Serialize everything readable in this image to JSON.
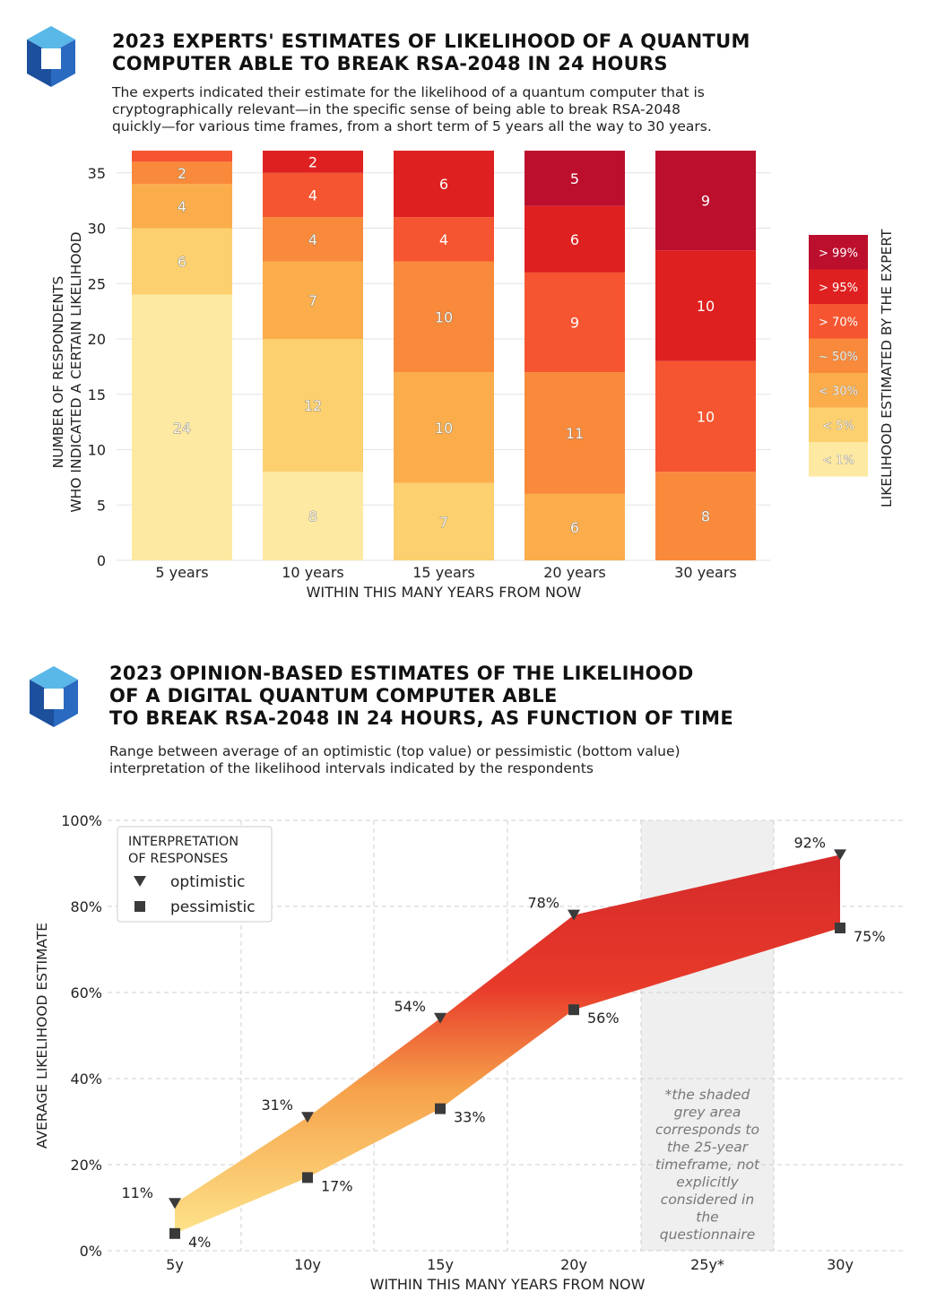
{
  "panel1": {
    "title_line1": "2023 EXPERTS' ESTIMATES OF LIKELIHOOD OF A QUANTUM",
    "title_line2": "COMPUTER ABLE TO BREAK RSA-2048 IN 24 HOURS",
    "subtitle_line1": "The experts indicated their estimate for the likelihood of a quantum computer that is",
    "subtitle_line2": "cryptographically relevant—in the specific sense of being able to break RSA-2048",
    "subtitle_line3": "quickly—for various time frames, from a short term of 5 years all the way to 30 years."
  },
  "panel2": {
    "title_line1": "2023 OPINION-BASED ESTIMATES OF THE LIKELIHOOD",
    "title_line2": "OF A DIGITAL QUANTUM COMPUTER ABLE",
    "title_line3": "TO BREAK RSA-2048 IN 24 HOURS, AS FUNCTION OF TIME",
    "subtitle_line1": "Range between average of an optimistic (top value) or pessimistic (bottom value)",
    "subtitle_line2": "interpretation of the likelihood intervals indicated by the respondents"
  },
  "colors": {
    "logo_light": "#5ab8e8",
    "logo_dark": "#1c4f9c",
    "seg": [
      "#fde9a2",
      "#fdd06f",
      "#fbad4c",
      "#f98a3c",
      "#f55530",
      "#df2020",
      "#bc0f2e"
    ],
    "band_top": "#d42a2a",
    "band_bottom": "#fde38a",
    "shade": "#efefef",
    "marker": "#3a3a3a"
  },
  "chart_data": [
    {
      "type": "bar",
      "stacked": true,
      "categories": [
        "5 years",
        "10 years",
        "15 years",
        "20 years",
        "30 years"
      ],
      "series": [
        {
          "name": "< 1%",
          "values": [
            24,
            8,
            0,
            0,
            0
          ]
        },
        {
          "name": "< 5%",
          "values": [
            6,
            12,
            7,
            0,
            0
          ]
        },
        {
          "name": "< 30%",
          "values": [
            4,
            7,
            10,
            6,
            0
          ]
        },
        {
          "name": "~ 50%",
          "values": [
            2,
            4,
            10,
            11,
            8
          ]
        },
        {
          "name": "> 70%",
          "values": [
            1,
            4,
            4,
            9,
            10
          ]
        },
        {
          "name": "> 95%",
          "values": [
            0,
            2,
            6,
            6,
            10
          ]
        },
        {
          "name": "> 99%",
          "values": [
            0,
            0,
            0,
            5,
            9
          ]
        }
      ],
      "segment_labels": [
        [
          "24",
          "6",
          "4",
          "2",
          "",
          "",
          ""
        ],
        [
          "8",
          "12",
          "7",
          "4",
          "4",
          "2",
          ""
        ],
        [
          "",
          "7",
          "10",
          "10",
          "4",
          "6",
          ""
        ],
        [
          "",
          "",
          "6",
          "11",
          "9",
          "6",
          "5"
        ],
        [
          "",
          "",
          "",
          "8",
          "10",
          "10",
          "9"
        ]
      ],
      "xlabel": "WITHIN THIS MANY YEARS FROM NOW",
      "ylabel_line1": "NUMBER OF RESPONDENTS",
      "ylabel_line2": "WHO INDICATED A CERTAIN LIKELIHOOD",
      "yticks": [
        "0",
        "5",
        "10",
        "15",
        "20",
        "25",
        "30",
        "35"
      ],
      "ylim": [
        0,
        37
      ],
      "legend_title": "LIKELIHOOD ESTIMATED BY THE EXPERT",
      "legend_entries": [
        "> 99%",
        "> 95%",
        "> 70%",
        "~ 50%",
        "< 30%",
        "< 5%",
        "< 1%"
      ],
      "legend_placement": "right",
      "grid": true
    },
    {
      "type": "area",
      "x": [
        "5y",
        "10y",
        "15y",
        "20y",
        "25y*",
        "30y"
      ],
      "series": [
        {
          "name": "optimistic",
          "x": [
            "5y",
            "10y",
            "15y",
            "20y",
            "30y"
          ],
          "values": [
            11,
            31,
            54,
            78,
            92
          ],
          "labels": [
            "11%",
            "31%",
            "54%",
            "78%",
            "92%"
          ]
        },
        {
          "name": "pessimistic",
          "x": [
            "5y",
            "10y",
            "15y",
            "20y",
            "30y"
          ],
          "values": [
            4,
            17,
            33,
            56,
            75
          ],
          "labels": [
            "4%",
            "17%",
            "33%",
            "56%",
            "75%"
          ]
        }
      ],
      "ylim": [
        0,
        100
      ],
      "yticks": [
        "0%",
        "20%",
        "40%",
        "60%",
        "80%",
        "100%"
      ],
      "xlabel": "WITHIN THIS MANY YEARS FROM NOW",
      "ylabel": "AVERAGE LIKELIHOOD ESTIMATE",
      "legend_title_line1": "INTERPRETATION",
      "legend_title_line2": "OF RESPONSES",
      "legend_entries": [
        "optimistic",
        "pessimistic"
      ],
      "legend_placement": "top-left",
      "shaded_region": "25y*",
      "annotation_lines": [
        "*the shaded",
        "grey area",
        "corresponds to",
        "the 25-year",
        "timeframe, not",
        "explicitly",
        "considered in",
        "the",
        "questionnaire"
      ],
      "grid": true
    }
  ]
}
